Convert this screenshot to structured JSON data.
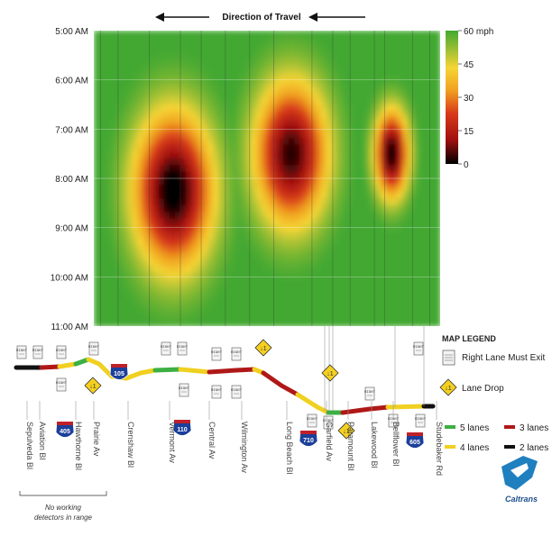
{
  "chart_data": {
    "type": "heatmap",
    "title": "Direction of Travel",
    "y_ticks": [
      "5:00 AM",
      "6:00 AM",
      "7:00 AM",
      "8:00 AM",
      "9:00 AM",
      "10:00 AM",
      "11:00 AM"
    ],
    "colorbar": {
      "ticks": [
        "60 mph",
        "45",
        "30",
        "15",
        "0"
      ],
      "range_mph": [
        0,
        60
      ],
      "colors": [
        "#000000",
        "#a01010",
        "#d83a1a",
        "#f0a020",
        "#f5d535",
        "#42a832"
      ]
    },
    "congestion_zones": [
      {
        "x_center": 0.23,
        "x_halfwidth": 0.14,
        "t_start": 6.3,
        "t_end": 10.2,
        "min_speed_mph": 6
      },
      {
        "x_center": 0.57,
        "x_halfwidth": 0.13,
        "t_start": 5.7,
        "t_end": 9.3,
        "min_speed_mph": 10
      },
      {
        "x_center": 0.86,
        "x_halfwidth": 0.06,
        "t_start": 6.4,
        "t_end": 8.6,
        "min_speed_mph": 8
      }
    ],
    "streets": [
      "Sepulveda Bl",
      "Aviation Bl",
      "Hawthorne Bl",
      "Prairie Av",
      "Crenshaw Bl",
      "Vermont Av",
      "Central Av",
      "Wilmington Av",
      "Long Beach Bl",
      "Garfield Av",
      "Paramount Bl",
      "Lakewood Bl",
      "Bellflower Bl",
      "Studebaker Rd"
    ],
    "freeway_shields": [
      "405",
      "105",
      "110",
      "710",
      "605"
    ],
    "lane_drop_marker": "↓1",
    "exit_sign_text": "RIGHT LANE MUST EXIT",
    "no_detectors_note": "No working detectors in range"
  },
  "map_legend": {
    "title": "MAP LEGEND",
    "right_lane_exit": "Right Lane Must Exit",
    "lane_drop": "Lane Drop",
    "lanes": [
      {
        "label": "5 lanes",
        "color": "#3cb043"
      },
      {
        "label": "3 lanes",
        "color": "#b01818"
      },
      {
        "label": "4 lanes",
        "color": "#f0d020"
      },
      {
        "label": "2 lanes",
        "color": "#111111"
      }
    ]
  },
  "logo": {
    "text": "Caltrans",
    "color": "#1f7fbf"
  }
}
